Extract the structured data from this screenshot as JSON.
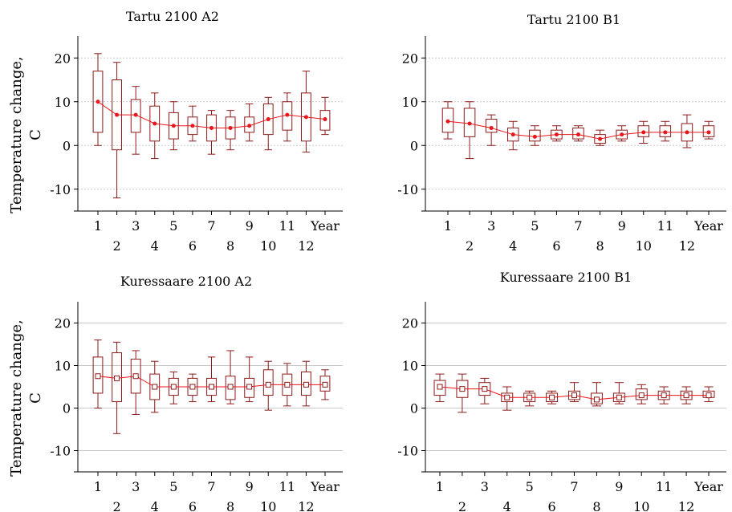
{
  "colors": {
    "box": "#8b1a1a",
    "median": "#e8161b",
    "grid": "#c8c8c8",
    "axis": "#000000"
  },
  "chart_data": [
    {
      "type": "box",
      "title": "Tartu 2100 A2",
      "ylabel": "Temperature change, C",
      "ylim": [
        -15,
        25
      ],
      "yticks": [
        20,
        10,
        0,
        -10
      ],
      "yticklabels": [
        "20",
        "10",
        "0",
        "-10"
      ],
      "grid": true,
      "median_marker": "dot",
      "categories": [
        "1",
        "2",
        "3",
        "4",
        "5",
        "6",
        "7",
        "8",
        "9",
        "10",
        "11",
        "12",
        "Year"
      ],
      "series": [
        {
          "min": [
            0,
            -12,
            -2,
            -3,
            -1,
            1,
            -2,
            -1,
            1,
            -1,
            1,
            -1.5,
            2.5
          ],
          "q1": [
            3,
            -1,
            3,
            1,
            1.5,
            2.5,
            1,
            1.5,
            3,
            2.5,
            3.5,
            1,
            3.5
          ],
          "median": [
            10,
            7,
            7,
            5,
            4.5,
            4.5,
            4,
            4,
            4.5,
            6,
            7,
            6.5,
            6
          ],
          "q3": [
            17,
            15,
            10.5,
            9,
            7.5,
            6.5,
            7,
            6.5,
            6.5,
            9.5,
            10,
            12,
            8
          ],
          "max": [
            21,
            19,
            13.5,
            12,
            10,
            9,
            8,
            8,
            9.5,
            11,
            12,
            17,
            11
          ]
        }
      ]
    },
    {
      "type": "box",
      "title": "Tartu 2100 B1",
      "ylabel": "",
      "ylim": [
        -15,
        25
      ],
      "yticks": [
        20,
        10,
        0,
        -10
      ],
      "yticklabels": [
        "20",
        "10",
        "0",
        "-10"
      ],
      "grid": true,
      "median_marker": "dot",
      "categories": [
        "1",
        "2",
        "3",
        "4",
        "5",
        "6",
        "7",
        "8",
        "9",
        "10",
        "11",
        "12",
        "Year"
      ],
      "series": [
        {
          "min": [
            1.5,
            -3,
            0,
            -1,
            0,
            1,
            1,
            0,
            1,
            0.5,
            1,
            -0.5,
            1.5
          ],
          "q1": [
            3,
            2,
            3,
            1,
            1,
            1.5,
            1.5,
            0.5,
            1.5,
            2,
            2,
            1,
            2
          ],
          "median": [
            5.5,
            5,
            4,
            2.5,
            2,
            2.5,
            2.5,
            1.5,
            2.5,
            3,
            3,
            3,
            3
          ],
          "q3": [
            8.5,
            8.5,
            6,
            4,
            3.5,
            3.5,
            4,
            2.5,
            3.5,
            4.5,
            4.5,
            5,
            4.5
          ],
          "max": [
            10,
            10,
            7,
            5.5,
            4.5,
            4.5,
            4.5,
            3.5,
            4.5,
            5.5,
            5.5,
            7,
            5.5
          ]
        }
      ]
    },
    {
      "type": "box",
      "title": "Kuressaare 2100 A2",
      "ylabel": "Temperature change, C",
      "ylim": [
        -15,
        25
      ],
      "yticks": [
        20,
        10,
        0,
        -10
      ],
      "yticklabels": [
        "20",
        "10",
        "0",
        "-10"
      ],
      "grid": true,
      "median_marker": "square",
      "categories": [
        "1",
        "2",
        "3",
        "4",
        "5",
        "6",
        "7",
        "8",
        "9",
        "10",
        "11",
        "12",
        "Year"
      ],
      "series": [
        {
          "min": [
            0,
            -6,
            -1.5,
            -1,
            1,
            1.5,
            1.5,
            1,
            1.5,
            -0.5,
            0.5,
            0.5,
            2
          ],
          "q1": [
            3.5,
            1.5,
            3.5,
            2,
            3,
            3,
            3,
            2,
            2.5,
            3,
            3,
            3,
            4
          ],
          "median": [
            7.5,
            7,
            7.5,
            5,
            5,
            5,
            5,
            5,
            5,
            5.5,
            5.5,
            5.5,
            5.5
          ],
          "q3": [
            12,
            13,
            11.5,
            8,
            7,
            7,
            7,
            7.5,
            7,
            9,
            8,
            8.5,
            7.5
          ],
          "max": [
            16,
            15.5,
            13.5,
            11,
            8.5,
            8,
            12,
            13.5,
            12,
            11,
            10.5,
            11,
            9
          ]
        }
      ]
    },
    {
      "type": "box",
      "title": "Kuressaare 2100 B1",
      "ylabel": "",
      "ylim": [
        -15,
        25
      ],
      "yticks": [
        20,
        10,
        0,
        -10
      ],
      "yticklabels": [
        "20",
        "10",
        "0",
        "-10"
      ],
      "grid": true,
      "median_marker": "square",
      "categories": [
        "1",
        "2",
        "3",
        "4",
        "5",
        "6",
        "7",
        "8",
        "9",
        "10",
        "11",
        "12",
        "Year"
      ],
      "series": [
        {
          "min": [
            1.5,
            -1,
            1,
            -0.5,
            0.5,
            1,
            1.5,
            0.5,
            1,
            1,
            1,
            1,
            1.5
          ],
          "q1": [
            3,
            2.5,
            3,
            1.5,
            1.5,
            1.5,
            2,
            1,
            1.5,
            2,
            2,
            2,
            2.5
          ],
          "median": [
            5,
            4.5,
            4.5,
            2.5,
            2.5,
            2.5,
            3,
            2,
            2.5,
            3,
            3,
            3,
            3
          ],
          "q3": [
            6.5,
            6.5,
            6,
            3.5,
            3.5,
            3.5,
            4,
            3.5,
            3.5,
            4.5,
            4,
            4,
            4
          ],
          "max": [
            8,
            8,
            7,
            5,
            4,
            4,
            6,
            6,
            6,
            5.5,
            5,
            5,
            5
          ]
        }
      ]
    }
  ]
}
